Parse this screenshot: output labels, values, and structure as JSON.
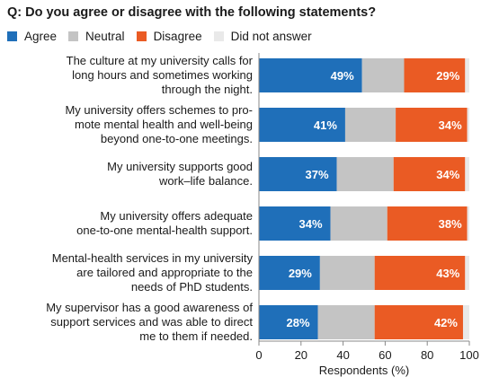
{
  "chart_data": {
    "type": "bar",
    "orientation": "horizontal",
    "stacked": true,
    "title": "Q: Do you agree or disagree with the following statements?",
    "xlabel": "Respondents (%)",
    "xlim": [
      0,
      100
    ],
    "xticks": [
      "0",
      "20",
      "40",
      "60",
      "80",
      "100"
    ],
    "grid": false,
    "legend_position": "top-left",
    "categories": [
      [
        "The culture at my university calls for",
        "long hours and sometimes working",
        "through the night."
      ],
      [
        "My university offers schemes to pro-",
        "mote mental health and well-being",
        "beyond one-to-one meetings."
      ],
      [
        "My university supports good",
        "work–life balance."
      ],
      [
        "My university offers adequate",
        "one-to-one mental-health support."
      ],
      [
        "Mental-health services in my university",
        "are tailored and appropriate to the",
        "needs of PhD students."
      ],
      [
        "My supervisor has a good awareness of",
        "support services and was able to direct",
        "me to them if needed."
      ]
    ],
    "series": [
      {
        "name": "Agree",
        "color": "#1f6fb9",
        "values": [
          49,
          41,
          37,
          34,
          29,
          28
        ],
        "labels": [
          "49%",
          "41%",
          "37%",
          "34%",
          "29%",
          "28%"
        ]
      },
      {
        "name": "Neutral",
        "color": "#c4c4c4",
        "values": [
          20,
          24,
          27,
          27,
          26,
          27
        ],
        "labels": []
      },
      {
        "name": "Disagree",
        "color": "#ea5b24",
        "values": [
          29,
          34,
          34,
          38,
          43,
          42
        ],
        "labels": [
          "29%",
          "34%",
          "34%",
          "38%",
          "43%",
          "42%"
        ]
      },
      {
        "name": "Did not answer",
        "color": "#e9e9e9",
        "values": [
          2,
          1,
          2,
          1,
          2,
          3
        ],
        "labels": []
      }
    ]
  }
}
